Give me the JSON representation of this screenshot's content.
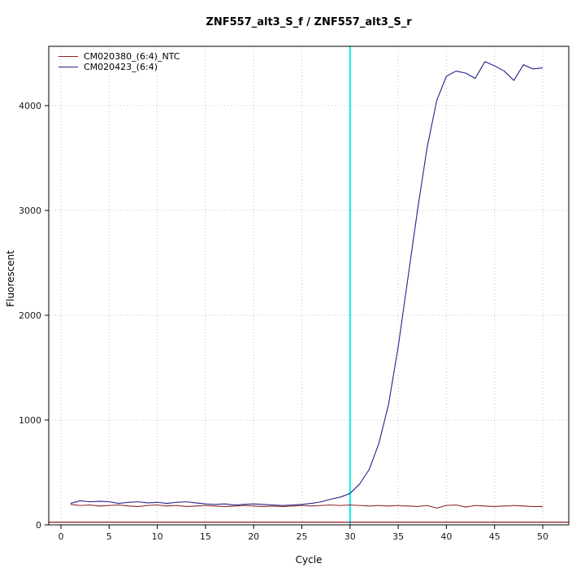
{
  "chart_data": {
    "type": "line",
    "title": "ZNF557_alt3_S_f / ZNF557_alt3_S_r",
    "xlabel": "Cycle",
    "ylabel": "Fluorescent",
    "xticks": [
      0,
      5,
      10,
      15,
      20,
      25,
      30,
      35,
      40,
      45,
      50
    ],
    "yticks": [
      0,
      1000,
      2000,
      3000,
      4000
    ],
    "xlim": [
      -1.3,
      52.7
    ],
    "ylim": [
      -50,
      4565
    ],
    "grid": true,
    "legend_position": "top-left",
    "grid_color": "#bfbfbf",
    "axis_color": "#000000",
    "marker_line": {
      "x": 30,
      "color": "#00eeee"
    },
    "threshold_line": {
      "y": 25,
      "color": "#8b1a1a"
    },
    "x": [
      1,
      2,
      3,
      4,
      5,
      6,
      7,
      8,
      9,
      10,
      11,
      12,
      13,
      14,
      15,
      16,
      17,
      18,
      19,
      20,
      21,
      22,
      23,
      24,
      25,
      26,
      27,
      28,
      29,
      30,
      31,
      32,
      33,
      34,
      35,
      36,
      37,
      38,
      39,
      40,
      41,
      42,
      43,
      44,
      45,
      46,
      47,
      48,
      49,
      50
    ],
    "series": [
      {
        "name": "CM020380_(6:4)_NTC",
        "color": "#8b2323",
        "values": [
          195,
          185,
          190,
          180,
          185,
          190,
          180,
          175,
          185,
          190,
          180,
          185,
          175,
          180,
          185,
          180,
          175,
          180,
          185,
          180,
          175,
          180,
          175,
          180,
          185,
          180,
          185,
          190,
          185,
          190,
          185,
          180,
          185,
          180,
          185,
          180,
          175,
          185,
          160,
          185,
          190,
          170,
          185,
          180,
          175,
          180,
          185,
          180,
          175,
          175
        ]
      },
      {
        "name": "CM020423_(6:4)",
        "color": "#22228b",
        "values": [
          205,
          230,
          220,
          225,
          220,
          205,
          215,
          220,
          210,
          215,
          205,
          215,
          220,
          210,
          200,
          195,
          200,
          190,
          195,
          200,
          195,
          190,
          185,
          190,
          195,
          205,
          220,
          245,
          265,
          300,
          390,
          530,
          780,
          1150,
          1700,
          2350,
          3000,
          3600,
          4050,
          4280,
          4330,
          4310,
          4260,
          4420,
          4380,
          4330,
          4240,
          4390,
          4350,
          4360
        ]
      }
    ]
  }
}
